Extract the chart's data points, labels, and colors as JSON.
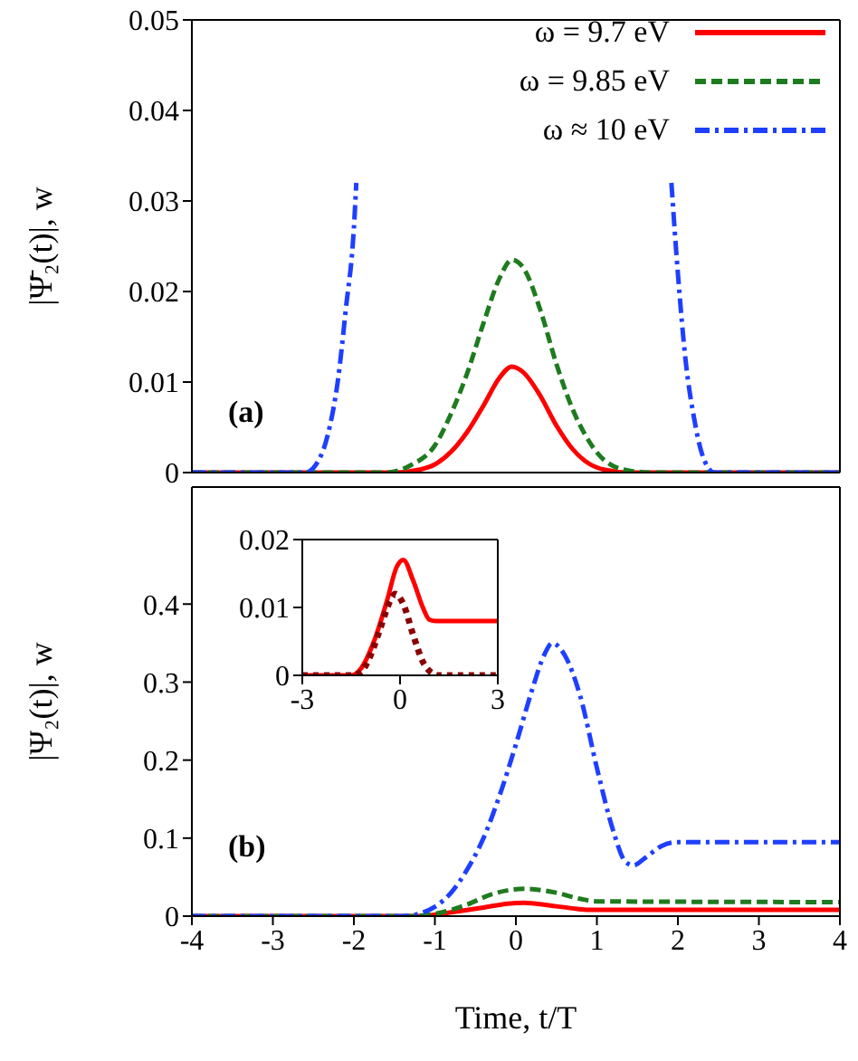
{
  "chart_data": [
    {
      "type": "line",
      "ylabel": "|Ψ̄₂(t)|, w",
      "annotations": [
        "(a)"
      ],
      "xlim": [
        -4,
        4
      ],
      "xticks": [
        -4,
        -3,
        -2,
        -1,
        0,
        1,
        2,
        3,
        4
      ],
      "ylim": [
        0,
        0.05
      ],
      "yticks": [
        0,
        0.01,
        0.02,
        0.03,
        0.04,
        0.05
      ],
      "tick_labels": "y",
      "legend": "top right",
      "grid": false,
      "marker": "none",
      "series": [
        {
          "name": "ω = 9.7 eV",
          "color": "#ff0000",
          "line_style": "solid",
          "x": [
            -4,
            -1.5,
            -1.2,
            -1.0,
            -0.8,
            -0.6,
            -0.4,
            -0.2,
            -0.05,
            0.1,
            0.3,
            0.5,
            0.7,
            0.9,
            1.1,
            1.4,
            4
          ],
          "values": [
            0,
            0,
            0.0003,
            0.0009,
            0.0023,
            0.0045,
            0.0074,
            0.0105,
            0.0117,
            0.011,
            0.0085,
            0.0052,
            0.0026,
            0.001,
            0.0003,
            0,
            0
          ]
        },
        {
          "name": "ω = 9.85 eV",
          "color": "#1e7b1e",
          "line_style": "dashed",
          "x": [
            -4,
            -1.6,
            -1.3,
            -1.0,
            -0.8,
            -0.6,
            -0.4,
            -0.2,
            -0.05,
            0.1,
            0.3,
            0.5,
            0.7,
            0.9,
            1.1,
            1.4,
            1.7,
            4
          ],
          "values": [
            0,
            0,
            0.0008,
            0.003,
            0.0065,
            0.011,
            0.0165,
            0.0215,
            0.0235,
            0.0225,
            0.018,
            0.012,
            0.007,
            0.0035,
            0.0013,
            0.0002,
            0,
            0
          ]
        },
        {
          "name": "ω ≈ 10 eV",
          "color": "#1f3fff",
          "line_style": "dashdot",
          "x": [
            -4,
            -2.6,
            -2.4,
            -2.3,
            -2.2,
            -2.1,
            -2.0,
            -1.97,
            0,
            1.92,
            2.0,
            2.1,
            2.2,
            2.3,
            2.45,
            4
          ],
          "values": [
            0,
            0,
            0.002,
            0.005,
            0.01,
            0.018,
            0.027,
            0.032,
            null,
            0.032,
            0.022,
            0.012,
            0.006,
            0.002,
            0,
            0
          ]
        }
      ]
    },
    {
      "type": "line",
      "ylabel": "|Ψ₂(t)|, w",
      "xlabel": "Time, t/T",
      "annotations": [
        "(b)"
      ],
      "xlim": [
        -4,
        4
      ],
      "xticks": [
        -4,
        -3,
        -2,
        -1,
        0,
        1,
        2,
        3,
        4
      ],
      "ylim": [
        0,
        0.55
      ],
      "yticks": [
        0,
        0.1,
        0.2,
        0.3,
        0.4
      ],
      "legend": false,
      "grid": false,
      "marker": "none",
      "series": [
        {
          "color": "#ff0000",
          "line_style": "solid",
          "x": [
            -4,
            -1.2,
            -0.8,
            -0.4,
            -0.1,
            0.1,
            0.4,
            0.7,
            0.9,
            1.1,
            4
          ],
          "values": [
            0,
            0,
            0.005,
            0.011,
            0.016,
            0.017,
            0.014,
            0.01,
            0.008,
            0.008,
            0.008
          ]
        },
        {
          "color": "#1e7b1e",
          "line_style": "dashed",
          "x": [
            -4,
            -1.3,
            -1.0,
            -0.6,
            -0.3,
            0.1,
            0.5,
            0.8,
            1.0,
            4
          ],
          "values": [
            0,
            0,
            0.003,
            0.015,
            0.028,
            0.035,
            0.03,
            0.022,
            0.019,
            0.018
          ]
        },
        {
          "color": "#1f3fff",
          "line_style": "dashdot",
          "x": [
            -4,
            -1.4,
            -1.2,
            -1.0,
            -0.8,
            -0.6,
            -0.4,
            -0.2,
            0,
            0.2,
            0.35,
            0.45,
            0.6,
            0.8,
            1.0,
            1.2,
            1.35,
            1.45,
            1.6,
            1.8,
            2.0,
            4
          ],
          "values": [
            0,
            0,
            0.003,
            0.012,
            0.03,
            0.06,
            0.1,
            0.155,
            0.22,
            0.29,
            0.335,
            0.35,
            0.335,
            0.28,
            0.19,
            0.11,
            0.07,
            0.065,
            0.075,
            0.09,
            0.095,
            0.095
          ]
        }
      ]
    },
    {
      "type": "line",
      "xlim": [
        -3,
        3
      ],
      "xticks": [
        -3,
        0,
        3
      ],
      "ylim": [
        0,
        0.02
      ],
      "yticks": [
        0,
        0.01,
        0.02
      ],
      "legend": false,
      "grid": false,
      "marker": "none",
      "series": [
        {
          "color": "#ff0000",
          "line_style": "solid",
          "x": [
            -3,
            -1.5,
            -1.2,
            -0.8,
            -0.4,
            -0.1,
            0.1,
            0.4,
            0.7,
            0.9,
            1.1,
            3
          ],
          "values": [
            0,
            0,
            0.001,
            0.005,
            0.011,
            0.016,
            0.017,
            0.014,
            0.01,
            0.0082,
            0.008,
            0.008
          ]
        },
        {
          "color": "#8b0000",
          "line_style": "dotted",
          "x": [
            -3,
            -1.5,
            -1.2,
            -0.9,
            -0.6,
            -0.3,
            -0.15,
            0.1,
            0.4,
            0.7,
            1.0,
            1.2,
            3
          ],
          "values": [
            0,
            0,
            0.0005,
            0.003,
            0.007,
            0.011,
            0.012,
            0.0105,
            0.006,
            0.002,
            0.0003,
            0,
            0
          ]
        }
      ]
    }
  ]
}
